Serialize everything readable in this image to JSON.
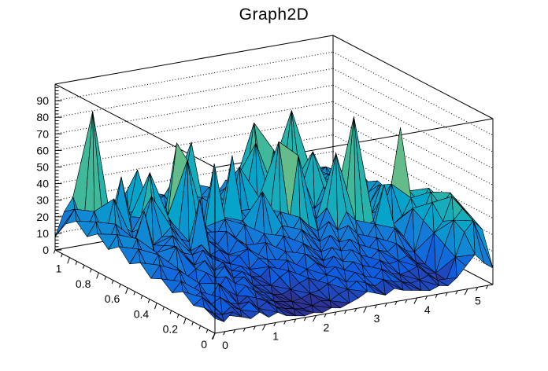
{
  "title": "Graph2D",
  "colors": {
    "background": "#ffffff",
    "frame_lines": "#000000",
    "text": "#000000",
    "mesh_lines": "#000000"
  },
  "chart_data": {
    "type": "surface3d",
    "title": "Graph2D",
    "legend": "none",
    "grid_on_backwalls": true,
    "x_axis": {
      "range": [
        0,
        5.5
      ],
      "ticks": [
        0,
        1,
        2,
        3,
        4,
        5
      ],
      "labels": [
        "0",
        "1",
        "2",
        "3",
        "4",
        "5"
      ],
      "minor_step": 0.2
    },
    "y_axis": {
      "range": [
        0,
        1.1
      ],
      "ticks": [
        1,
        0.8,
        0.6,
        0.4,
        0.2,
        0
      ],
      "labels": [
        "1",
        "0.8",
        "0.6",
        "0.4",
        "0.2",
        "0"
      ],
      "minor_step": 0.05
    },
    "z_axis": {
      "range": [
        0,
        100
      ],
      "ticks": [
        0,
        10,
        20,
        30,
        40,
        50,
        60,
        70,
        80,
        90
      ],
      "labels": [
        "0",
        "10",
        "20",
        "30",
        "40",
        "50",
        "60",
        "70",
        "80",
        "90"
      ],
      "minor_step": 2,
      "gridline_values": [
        10,
        20,
        30,
        40,
        50,
        60,
        70,
        80,
        90
      ]
    },
    "palette": [
      "#352A87",
      "#0F5CDD",
      "#1481D6",
      "#06A4CA",
      "#2EB7A4",
      "#87BF77",
      "#D1BB59",
      "#FEC832",
      "#F9FB0E"
    ],
    "z_color_max": 84,
    "grid": {
      "nx": 32,
      "ny": 16,
      "row_order": "y=0 (front) to y=1.1 (back)",
      "z": [
        [
          9,
          6,
          11,
          7,
          5,
          8,
          4,
          6,
          3,
          2,
          1,
          2,
          1,
          3,
          2,
          4,
          6,
          9,
          7,
          5,
          8,
          6,
          5,
          4,
          3,
          5,
          4,
          8,
          14,
          20,
          14,
          10
        ],
        [
          12,
          8,
          6,
          10,
          7,
          11,
          6,
          9,
          5,
          3,
          2,
          1,
          2,
          4,
          3,
          6,
          8,
          12,
          10,
          7,
          10,
          8,
          7,
          5,
          6,
          8,
          4,
          3,
          16,
          30,
          36,
          30
        ],
        [
          10,
          14,
          9,
          12,
          8,
          6,
          10,
          8,
          6,
          4,
          3,
          2,
          3,
          5,
          6,
          9,
          12,
          8,
          13,
          10,
          7,
          12,
          9,
          7,
          8,
          10,
          5,
          4,
          20,
          34,
          40,
          34
        ],
        [
          15,
          10,
          13,
          8,
          16,
          11,
          7,
          12,
          8,
          6,
          4,
          3,
          5,
          8,
          10,
          7,
          10,
          14,
          11,
          15,
          12,
          9,
          13,
          10,
          11,
          13,
          8,
          6,
          24,
          30,
          44,
          38
        ],
        [
          11,
          17,
          9,
          14,
          12,
          8,
          15,
          10,
          13,
          7,
          6,
          5,
          9,
          12,
          8,
          11,
          14,
          10,
          16,
          12,
          18,
          14,
          10,
          15,
          13,
          17,
          12,
          10,
          28,
          38,
          35,
          42
        ],
        [
          16,
          11,
          19,
          13,
          9,
          15,
          11,
          17,
          9,
          12,
          8,
          7,
          12,
          9,
          14,
          10,
          16,
          13,
          10,
          17,
          14,
          20,
          16,
          12,
          18,
          14,
          22,
          16,
          32,
          26,
          40,
          36
        ],
        [
          13,
          20,
          12,
          16,
          10,
          14,
          18,
          11,
          15,
          9,
          11,
          8,
          14,
          12,
          10,
          15,
          12,
          18,
          14,
          11,
          20,
          15,
          24,
          18,
          14,
          22,
          45,
          20,
          24,
          34,
          30,
          38
        ],
        [
          19,
          13,
          22,
          15,
          25,
          17,
          12,
          20,
          14,
          11,
          9,
          13,
          16,
          10,
          18,
          13,
          20,
          15,
          22,
          17,
          13,
          24,
          18,
          28,
          22,
          16,
          20,
          26,
          40,
          73,
          34,
          30
        ],
        [
          15,
          23,
          13,
          19,
          12,
          21,
          16,
          14,
          19,
          12,
          14,
          10,
          18,
          14,
          12,
          19,
          15,
          22,
          17,
          25,
          19,
          15,
          28,
          60,
          24,
          80,
          26,
          20,
          36,
          28,
          32,
          26
        ],
        [
          22,
          14,
          25,
          16,
          13,
          18,
          23,
          15,
          12,
          42,
          16,
          13,
          20,
          15,
          22,
          16,
          40,
          18,
          26,
          20,
          58,
          24,
          18,
          30,
          24,
          20,
          55,
          28,
          22,
          32,
          28,
          24
        ],
        [
          17,
          25,
          14,
          20,
          36,
          15,
          19,
          24,
          16,
          13,
          21,
          17,
          14,
          23,
          17,
          20,
          16,
          26,
          20,
          64,
          22,
          28,
          24,
          20,
          32,
          26,
          22,
          30,
          26,
          24,
          30,
          22
        ],
        [
          23,
          15,
          27,
          17,
          14,
          22,
          40,
          18,
          24,
          15,
          58,
          19,
          16,
          53,
          20,
          56,
          22,
          18,
          28,
          22,
          17,
          26,
          22,
          34,
          50,
          26,
          30,
          24,
          28,
          22,
          26,
          20
        ],
        [
          18,
          26,
          15,
          38,
          21,
          16,
          24,
          50,
          17,
          22,
          65,
          26,
          18,
          15,
          24,
          20,
          19,
          44,
          24,
          18,
          30,
          24,
          26,
          28,
          22,
          34,
          26,
          30,
          24,
          26,
          22,
          24
        ],
        [
          24,
          16,
          28,
          18,
          15,
          46,
          21,
          17,
          26,
          16,
          23,
          19,
          48,
          17,
          25,
          19,
          24,
          20,
          30,
          24,
          52,
          20,
          46,
          26,
          68,
          24,
          28,
          22,
          26,
          20,
          24,
          18
        ],
        [
          19,
          27,
          16,
          84,
          22,
          17,
          25,
          19,
          44,
          14,
          22,
          26,
          17,
          24,
          55,
          21,
          26,
          22,
          18,
          28,
          22,
          60,
          24,
          30,
          26,
          22,
          24,
          28,
          22,
          26,
          20,
          22
        ],
        [
          8,
          22,
          30,
          26,
          18,
          24,
          15,
          20,
          28,
          16,
          20,
          24,
          16,
          20,
          34,
          18,
          24,
          20,
          16,
          24,
          20,
          28,
          22,
          26,
          22,
          18,
          22,
          24,
          18,
          22,
          16,
          18
        ]
      ]
    }
  }
}
